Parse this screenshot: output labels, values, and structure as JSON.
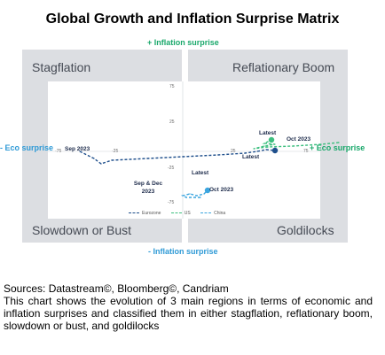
{
  "title": "Global Growth and Inflation Surprise Matrix",
  "quadrants": {
    "top_left": "Stagflation",
    "top_right": "Reflationary Boom",
    "bottom_left": "Slowdown or Bust",
    "bottom_right": "Goldilocks"
  },
  "axis_labels": {
    "top": "+ Inflation surprise",
    "bottom": "- Inflation surprise",
    "left": "- Eco surprise",
    "right": "+ Eco surprise"
  },
  "ticks": {
    "y_top": "75",
    "y_mid_up": "25",
    "y_mid_down": "-25",
    "y_bottom": "-75",
    "x_left": "-75",
    "x_mid_left": "-25",
    "x_mid_right": "25",
    "x_right": "75"
  },
  "annotations": {
    "eurozone_start": "Sep 2023",
    "us_latest": "Latest",
    "us_end": "Oct 2023",
    "eurozone_latest": "Latest",
    "china_latest": "Latest",
    "china_start": "Sep & Dec 2023",
    "china_end": "Oct 2023"
  },
  "colors": {
    "eurozone": "#1f4f8c",
    "us": "#3dbf7f",
    "china": "#3ba5df",
    "quadrant_bg": "#dcdee2",
    "label_green": "#1aa86b",
    "label_blue": "#2f9ad6"
  },
  "chart_data": {
    "type": "line",
    "title": "Global Growth and Inflation Surprise Matrix",
    "xlabel": "Eco surprise",
    "ylabel": "Inflation surprise",
    "xlim": [
      -75,
      75
    ],
    "ylim": [
      -75,
      75
    ],
    "grid": false,
    "legend_position": "bottom",
    "series": [
      {
        "name": "Eurozone",
        "points": [
          [
            -58,
            0
          ],
          [
            -50,
            -8
          ],
          [
            -46,
            -14
          ],
          [
            -40,
            -10
          ],
          [
            -20,
            -8
          ],
          [
            0,
            -6
          ],
          [
            20,
            -4
          ],
          [
            35,
            -2
          ],
          [
            42,
            0
          ],
          [
            47,
            2
          ],
          [
            52,
            1
          ]
        ]
      },
      {
        "name": "US",
        "points": [
          [
            88,
            10
          ],
          [
            78,
            8
          ],
          [
            62,
            6
          ],
          [
            48,
            5
          ],
          [
            40,
            3
          ],
          [
            46,
            6
          ],
          [
            52,
            8
          ],
          [
            46,
            9
          ],
          [
            50,
            13
          ]
        ]
      },
      {
        "name": "China",
        "points": [
          [
            10,
            -52
          ],
          [
            2,
            -52
          ],
          [
            0,
            -50
          ],
          [
            4,
            -48
          ],
          [
            8,
            -50
          ],
          [
            12,
            -48
          ],
          [
            14,
            -44
          ]
        ]
      }
    ]
  },
  "legend": [
    "Eurozone",
    "US",
    "China"
  ],
  "notes": {
    "sources": "Sources: Datastream©, Bloomberg©, Candriam",
    "description": "This chart shows the evolution of 3 main regions in terms of economic and inflation surprises and classified them in either stagflation, reflationary boom, slowdown or bust, and goldilocks"
  }
}
